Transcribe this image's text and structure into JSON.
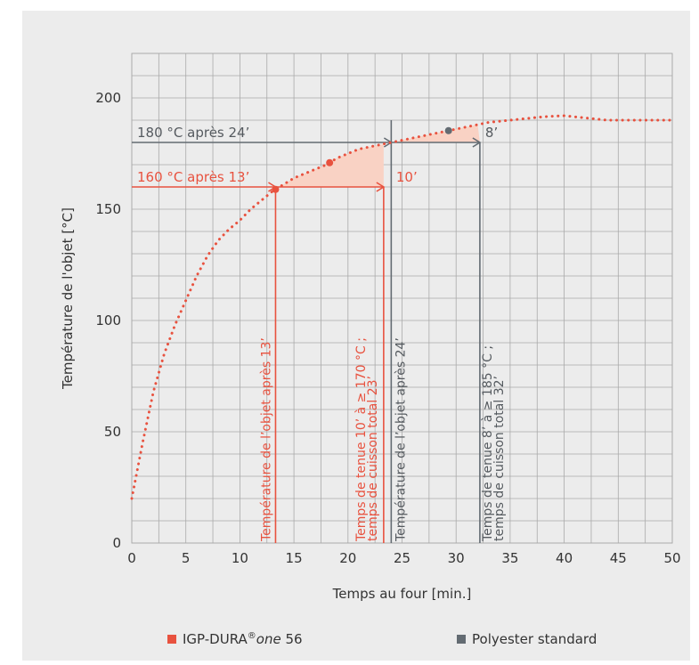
{
  "chart_data": {
    "type": "line",
    "xlabel": "Temps au four [min.]",
    "ylabel": "Température de l'objet [°C]",
    "xlim": [
      0,
      50
    ],
    "ylim": [
      0,
      220
    ],
    "x_ticks": [
      0,
      5,
      10,
      15,
      20,
      25,
      30,
      35,
      40,
      45,
      50
    ],
    "y_ticks": [
      0,
      50,
      100,
      150,
      200
    ],
    "grid": true,
    "series": [
      {
        "name": "",
        "style": "dotted",
        "x": [
          0,
          1,
          2,
          3,
          4,
          5,
          6,
          7,
          8,
          9,
          10,
          11,
          12,
          13,
          14,
          15,
          16,
          17,
          18,
          19,
          20,
          21,
          22,
          23,
          24,
          25,
          26,
          27,
          28,
          29,
          30,
          31,
          32,
          33,
          34,
          35,
          36,
          37,
          38,
          39,
          40,
          41,
          42,
          43,
          44,
          45,
          46,
          47,
          48,
          49,
          50
        ],
        "y": [
          20,
          45,
          68,
          85,
          98,
          109,
          120,
          129,
          136,
          141,
          145,
          150,
          154,
          158,
          161,
          164,
          166,
          168,
          170,
          173,
          175,
          177,
          178,
          179,
          180,
          181,
          182,
          183,
          184,
          185,
          186,
          187,
          188,
          189,
          189.5,
          190,
          190.5,
          191,
          191.5,
          191.8,
          192,
          191.5,
          191,
          190.5,
          190,
          190,
          190,
          190,
          190,
          190,
          190
        ]
      }
    ],
    "markers": [
      {
        "x": 13.3,
        "y": 160,
        "color": "#e8523f"
      },
      {
        "x": 18.3,
        "y": 171,
        "color": "#e8523f"
      },
      {
        "x": 29.3,
        "y": 186,
        "color": "#636b72"
      }
    ],
    "annotations": {
      "igp_temp_label": "160 °C après 13’",
      "igp_hold_label": "10’",
      "igp_vline_13": "Température de l’objet après 13’",
      "igp_vline_23_line1": "Temps de tenue 10’ à ≥ 170 °C ;",
      "igp_vline_23_line2": "temps de cuisson total 23’",
      "std_temp_label": "180 °C après 24’",
      "std_hold_label": "8’",
      "std_vline_24": "Température de l’objet après 24’",
      "std_vline_32_line1": "Temps de tenue 8’ à ≥ 185 °C ;",
      "std_vline_32_line2": "temps de cuisson total 32’"
    },
    "legend": {
      "placement": "bottom",
      "entries": [
        {
          "prefix": "IGP-DURA",
          "sup": "®",
          "italic": "one",
          "suffix": " 56",
          "color": "#e8523f"
        },
        {
          "label": "Polyester standard",
          "color": "#636b72"
        }
      ]
    },
    "colors": {
      "igp": "#e8523f",
      "standard": "#636b72",
      "fill": "#f9d2c4",
      "grid": "#aaaaaa",
      "text": "#333333"
    }
  }
}
